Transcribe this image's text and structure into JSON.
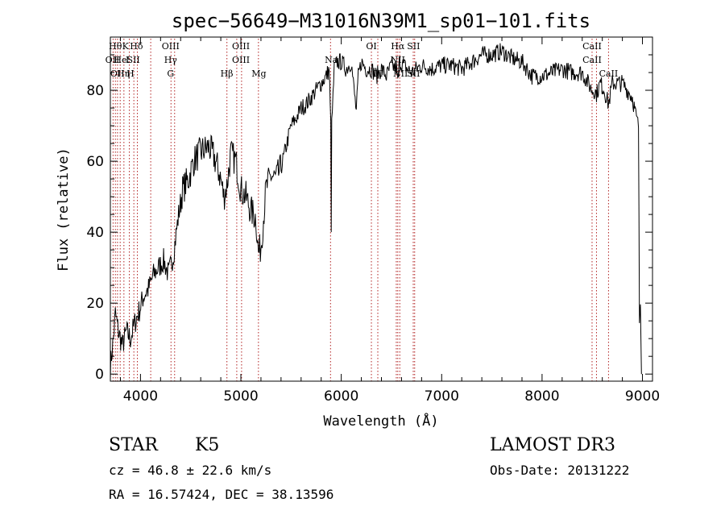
{
  "chart_data": {
    "type": "line",
    "title": "spec−56649−M31016N39M1_sp01−101.fits",
    "xlabel": "Wavelength (Å)",
    "ylabel": "Flux (relative)",
    "xlim": [
      3700,
      9100
    ],
    "ylim": [
      -2,
      95
    ],
    "x_ticks": [
      4000,
      5000,
      6000,
      7000,
      8000,
      9000
    ],
    "y_ticks": [
      0,
      20,
      40,
      60,
      80
    ],
    "grid": false,
    "series": [
      {
        "name": "spectrum",
        "anchors": [
          [
            3700,
            2
          ],
          [
            3730,
            10
          ],
          [
            3750,
            17
          ],
          [
            3780,
            12
          ],
          [
            3820,
            8
          ],
          [
            3860,
            12
          ],
          [
            3900,
            10
          ],
          [
            3950,
            15
          ],
          [
            3990,
            18
          ],
          [
            4030,
            22
          ],
          [
            4080,
            24
          ],
          [
            4130,
            28
          ],
          [
            4180,
            30
          ],
          [
            4230,
            32
          ],
          [
            4280,
            28
          ],
          [
            4330,
            34
          ],
          [
            4380,
            45
          ],
          [
            4420,
            52
          ],
          [
            4480,
            55
          ],
          [
            4530,
            60
          ],
          [
            4580,
            62
          ],
          [
            4620,
            63
          ],
          [
            4680,
            64
          ],
          [
            4720,
            62
          ],
          [
            4760,
            59
          ],
          [
            4800,
            55
          ],
          [
            4830,
            50
          ],
          [
            4860,
            53
          ],
          [
            4900,
            62
          ],
          [
            4950,
            60
          ],
          [
            5000,
            52
          ],
          [
            5050,
            50
          ],
          [
            5100,
            46
          ],
          [
            5150,
            44
          ],
          [
            5175,
            34
          ],
          [
            5200,
            36
          ],
          [
            5250,
            52
          ],
          [
            5300,
            56
          ],
          [
            5350,
            55
          ],
          [
            5400,
            58
          ],
          [
            5450,
            64
          ],
          [
            5500,
            70
          ],
          [
            5550,
            72
          ],
          [
            5600,
            75
          ],
          [
            5650,
            76
          ],
          [
            5700,
            78
          ],
          [
            5750,
            80
          ],
          [
            5800,
            82
          ],
          [
            5850,
            84
          ],
          [
            5880,
            86
          ],
          [
            5895,
            70
          ],
          [
            5900,
            42
          ],
          [
            5905,
            70
          ],
          [
            5930,
            86
          ],
          [
            5960,
            88
          ],
          [
            6000,
            88
          ],
          [
            6050,
            86
          ],
          [
            6100,
            88
          ],
          [
            6120,
            82
          ],
          [
            6150,
            74
          ],
          [
            6170,
            84
          ],
          [
            6200,
            88
          ],
          [
            6250,
            86
          ],
          [
            6300,
            86
          ],
          [
            6350,
            84
          ],
          [
            6400,
            86
          ],
          [
            6450,
            84
          ],
          [
            6500,
            87
          ],
          [
            6550,
            86
          ],
          [
            6563,
            82
          ],
          [
            6580,
            88
          ],
          [
            6620,
            87
          ],
          [
            6700,
            85
          ],
          [
            6750,
            86
          ],
          [
            6800,
            87
          ],
          [
            6900,
            86
          ],
          [
            7000,
            87
          ],
          [
            7100,
            87
          ],
          [
            7200,
            86
          ],
          [
            7300,
            88
          ],
          [
            7400,
            90
          ],
          [
            7500,
            90
          ],
          [
            7600,
            91
          ],
          [
            7700,
            89
          ],
          [
            7800,
            88
          ],
          [
            7850,
            86
          ],
          [
            7900,
            84
          ],
          [
            8000,
            84
          ],
          [
            8100,
            85
          ],
          [
            8200,
            86
          ],
          [
            8300,
            85
          ],
          [
            8400,
            85
          ],
          [
            8498,
            80
          ],
          [
            8520,
            80
          ],
          [
            8542,
            79
          ],
          [
            8580,
            82
          ],
          [
            8620,
            80
          ],
          [
            8662,
            76
          ],
          [
            8700,
            82
          ],
          [
            8800,
            82
          ],
          [
            8850,
            80
          ],
          [
            8900,
            78
          ],
          [
            8940,
            72
          ],
          [
            8960,
            70
          ],
          [
            8970,
            15
          ],
          [
            8980,
            22
          ],
          [
            8990,
            0
          ]
        ]
      }
    ],
    "spectral_lines": [
      {
        "x": 3720,
        "row": 1,
        "label": "OII"
      },
      {
        "x": 3750,
        "row": 0,
        "label": "Hθ"
      },
      {
        "x": 3770,
        "row": 2,
        "label": "OII"
      },
      {
        "x": 3800,
        "row": 1,
        "label": "He"
      },
      {
        "x": 3830,
        "row": 2,
        "label": "Hη"
      },
      {
        "x": 3850,
        "row": 0,
        "label": "K"
      },
      {
        "x": 3870,
        "row": 1,
        "label": "I"
      },
      {
        "x": 3900,
        "row": 2,
        "label": "H"
      },
      {
        "x": 3930,
        "row": 1,
        "label": "SII"
      },
      {
        "x": 3960,
        "row": 0,
        "label": "Hδ"
      },
      {
        "x": 4300,
        "row": 0,
        "label": "OIII"
      },
      {
        "x": 4300,
        "row": 1,
        "label": "Hγ"
      },
      {
        "x": 4300,
        "row": 2,
        "label": "G"
      },
      {
        "x": 4860,
        "row": 2,
        "label": "Hβ"
      },
      {
        "x": 5000,
        "row": 0,
        "label": "OIII"
      },
      {
        "x": 5000,
        "row": 1,
        "label": "OIII"
      },
      {
        "x": 5180,
        "row": 2,
        "label": "Mg"
      },
      {
        "x": 5900,
        "row": 1,
        "label": "Na"
      },
      {
        "x": 6300,
        "row": 0,
        "label": "OI"
      },
      {
        "x": 6360,
        "row": 2,
        "label": "OI"
      },
      {
        "x": 6563,
        "row": 0,
        "label": "Hα"
      },
      {
        "x": 6563,
        "row": 1,
        "label": "NII"
      },
      {
        "x": 6590,
        "row": 2,
        "label": "NII"
      },
      {
        "x": 6720,
        "row": 0,
        "label": "SII"
      },
      {
        "x": 6720,
        "row": 2,
        "label": "SII"
      },
      {
        "x": 8498,
        "row": 0,
        "label": "CaII"
      },
      {
        "x": 8498,
        "row": 1,
        "label": "CaII"
      },
      {
        "x": 8662,
        "row": 2,
        "label": "CaII"
      }
    ],
    "line_markers": [
      3727,
      3750,
      3771,
      3798,
      3835,
      3889,
      3934,
      3969,
      4102,
      4304,
      4340,
      4861,
      4959,
      5007,
      5175,
      5893,
      6300,
      6364,
      6548,
      6563,
      6583,
      6717,
      6731,
      8498,
      8542,
      8662
    ]
  },
  "info": {
    "object_class": "STAR",
    "subclass": "K5",
    "cz": "cz = 46.8 ± 22.6 km/s",
    "coords": "RA =  16.57424, DEC =  38.13596",
    "survey": "LAMOST DR3",
    "obs_date": "Obs-Date: 20131222"
  }
}
